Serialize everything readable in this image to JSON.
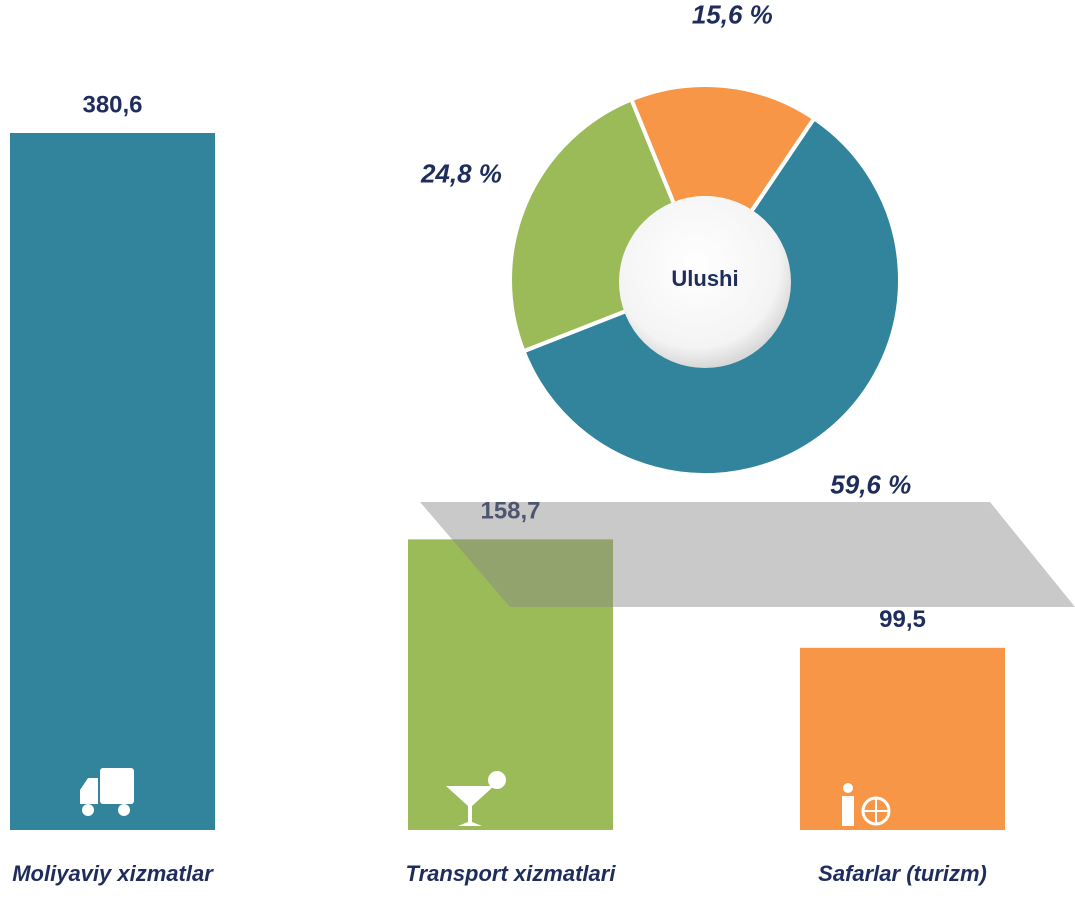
{
  "chart_data": [
    {
      "type": "bar",
      "categories": [
        "Moliyaviy xizmatlar",
        "Transport xizmatlari",
        "Safarlar (turizm)"
      ],
      "values": [
        380.6,
        158.7,
        99.5
      ],
      "value_labels": [
        "380,6",
        "158,7",
        "99,5"
      ],
      "colors": [
        "#31849b",
        "#9bbb59",
        "#f79646"
      ]
    },
    {
      "type": "donut",
      "center_label": "Ulushi",
      "values": [
        59.6,
        24.8,
        15.6
      ],
      "value_labels": [
        "59,6 %",
        "24,8 %",
        "15,6 %"
      ],
      "colors": [
        "#31849b",
        "#9bbb59",
        "#f79646"
      ]
    }
  ]
}
